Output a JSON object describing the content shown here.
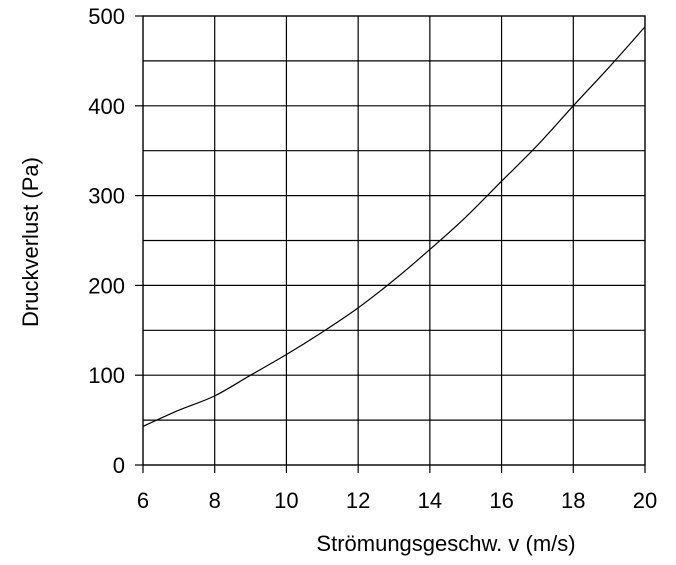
{
  "chart_data": {
    "type": "line",
    "title": "",
    "xlabel": "Strömungsgeschw. v (m/s)",
    "ylabel": "Druckverlust  (Pa)",
    "xlim": [
      6,
      20
    ],
    "ylim": [
      0,
      500
    ],
    "x_ticks": [
      6,
      8,
      10,
      12,
      14,
      16,
      18,
      20
    ],
    "x_tick_labels": [
      "6",
      "8",
      "10",
      "12",
      "14",
      "16",
      "18",
      "20"
    ],
    "y_ticks": [
      0,
      100,
      200,
      300,
      400,
      500
    ],
    "y_tick_labels": [
      "0",
      "100",
      "200",
      "300",
      "400",
      "500"
    ],
    "y_minor_ticks": [
      50,
      150,
      250,
      350,
      450
    ],
    "grid": true,
    "legend": "none",
    "series": [
      {
        "x": [
          6,
          7,
          8,
          9,
          10,
          11,
          12,
          13,
          14,
          15,
          16,
          17,
          18,
          19,
          20
        ],
        "y": [
          43,
          61,
          77,
          100,
          123,
          148,
          175,
          206,
          240,
          276,
          316,
          356,
          400,
          443,
          488
        ],
        "color": "#000000"
      }
    ]
  }
}
